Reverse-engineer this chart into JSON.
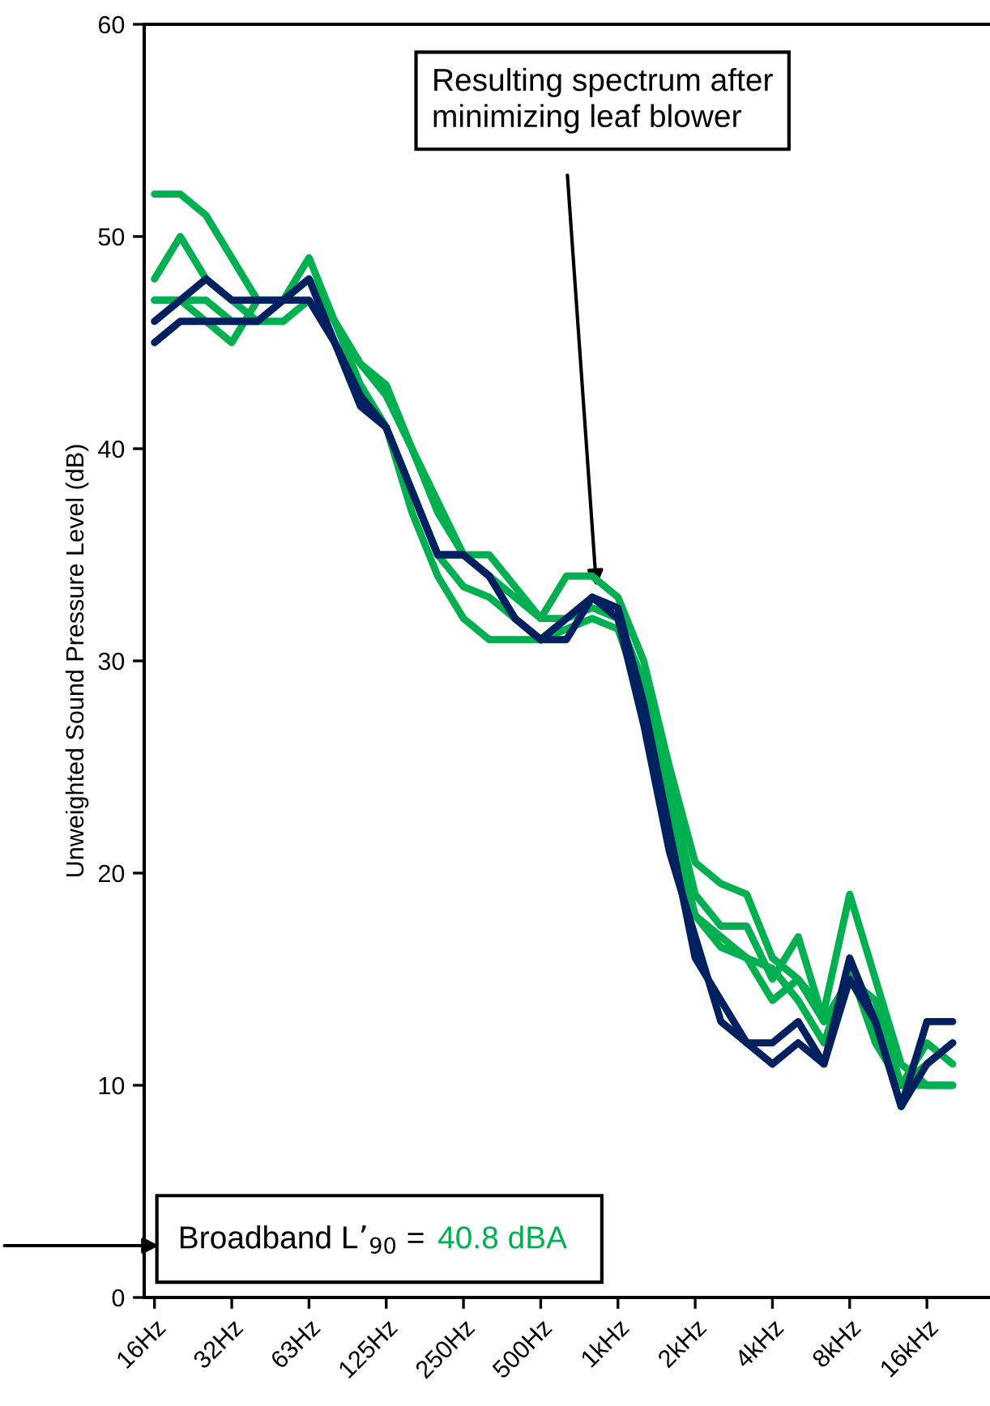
{
  "chart_data": {
    "type": "line",
    "ylabel": "Unweighted Sound Pressure Level (dB)",
    "categories": [
      "16Hz",
      null,
      null,
      "32Hz",
      null,
      null,
      "63Hz",
      null,
      null,
      "125Hz",
      null,
      null,
      "250Hz",
      null,
      null,
      "500Hz",
      null,
      null,
      "1kHz",
      null,
      null,
      "2kHz",
      null,
      null,
      "4kHz",
      null,
      null,
      "8kHz",
      null,
      null,
      "16kHz",
      null
    ],
    "series": [
      {
        "color": "#00b050",
        "values": [
          52,
          52,
          51,
          49,
          47,
          47,
          48,
          46,
          44,
          42.5,
          40,
          37.5,
          35,
          34,
          33,
          32,
          34,
          34,
          33,
          30,
          25,
          20.5,
          19.5,
          19,
          16,
          15,
          13.5,
          19,
          15,
          11,
          10,
          10
        ]
      },
      {
        "color": "#00b050",
        "values": [
          48,
          50,
          48,
          47,
          46,
          47,
          49,
          46,
          44,
          43,
          40,
          37,
          35,
          35,
          33.5,
          32,
          32,
          33,
          32,
          29,
          24,
          19,
          17.5,
          17.5,
          15,
          17,
          13,
          15,
          13,
          10,
          11,
          12
        ]
      },
      {
        "color": "#00b050",
        "values": [
          47,
          47,
          46,
          45,
          47,
          47,
          48,
          46,
          43,
          41,
          38,
          35,
          33.5,
          33,
          32,
          31,
          32,
          32.5,
          32,
          28,
          23,
          18,
          17,
          16,
          14,
          15,
          13,
          15,
          14,
          10,
          12,
          11
        ]
      },
      {
        "color": "#00b050",
        "values": [
          47,
          47,
          47,
          46,
          46,
          46,
          47,
          45,
          43,
          41,
          37,
          34,
          32,
          31,
          31,
          31,
          31.5,
          32,
          31.5,
          28,
          22,
          18,
          16.5,
          16,
          15.5,
          14,
          12,
          15.5,
          12,
          10,
          10,
          10
        ]
      },
      {
        "color": "#002060",
        "values": [
          46,
          47,
          48,
          47,
          47,
          47,
          48,
          45,
          42,
          41,
          38,
          35,
          35,
          34,
          32,
          31,
          32,
          33,
          32,
          27,
          21,
          17,
          13,
          12,
          11,
          12,
          11,
          16,
          13,
          9,
          11,
          12
        ]
      },
      {
        "color": "#002060",
        "values": [
          45,
          46,
          46,
          46,
          46,
          47,
          47,
          45,
          42.5,
          41,
          38,
          35,
          35,
          34,
          32,
          31,
          31,
          33,
          32.5,
          28,
          22,
          16,
          14,
          12,
          12,
          13,
          11,
          15,
          13,
          9,
          13,
          13
        ]
      }
    ],
    "ylim": [
      0,
      60
    ],
    "yticks": [
      0,
      10,
      20,
      30,
      40,
      50,
      60
    ],
    "annotations": [
      "Resulting spectrum after\nminimizing leaf blower",
      "Broadband L’$_{90}$ =",
      "40.8 dBA"
    ],
    "grid": false,
    "legend": false,
    "marker": "none",
    "line_style": "solid"
  }
}
